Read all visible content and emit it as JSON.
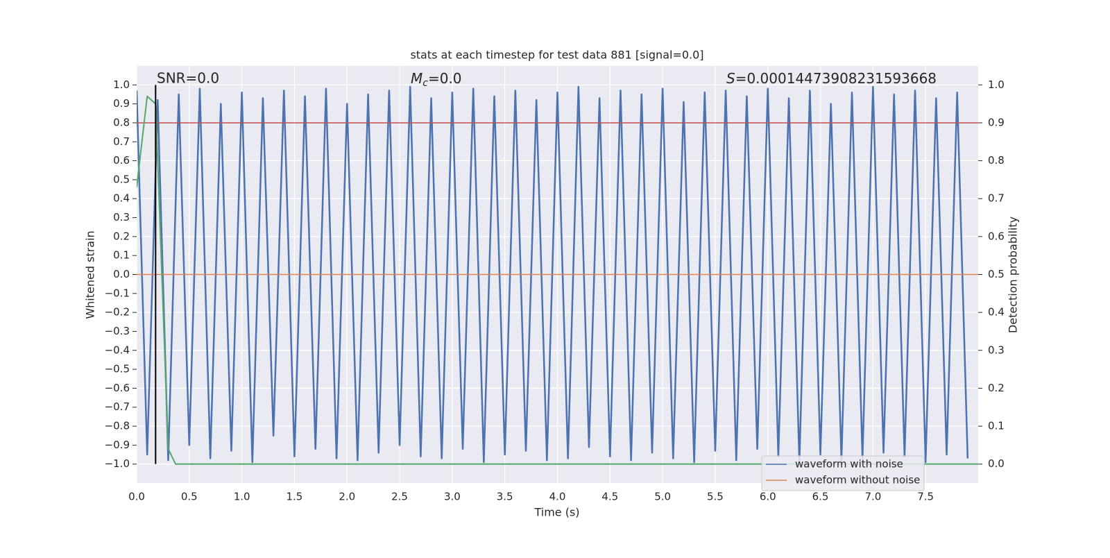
{
  "chart_data": {
    "type": "line",
    "title": "stats at each timestep for test data 881 [signal=0.0]",
    "xlabel": "Time (s)",
    "ylabel": "Whitened strain",
    "y2label": "Detection probability",
    "annotations": [
      {
        "text": "SNR=0.0"
      },
      {
        "symbol": "M",
        "subscript": "c",
        "text": "=0.0"
      },
      {
        "symbol": "S",
        "text": "=0.00014473908231593668"
      }
    ],
    "xlim": [
      0,
      8
    ],
    "ylim": [
      -1.1,
      1.1
    ],
    "y2lim": [
      -0.05,
      1.05
    ],
    "xticks": [
      {
        "value": 0,
        "label": "0.0"
      },
      {
        "value": 0.5,
        "label": "0.5"
      },
      {
        "value": 1,
        "label": "1.0"
      },
      {
        "value": 1.5,
        "label": "1.5"
      },
      {
        "value": 2,
        "label": "2.0"
      },
      {
        "value": 2.5,
        "label": "2.5"
      },
      {
        "value": 3,
        "label": "3.0"
      },
      {
        "value": 3.5,
        "label": "3.5"
      },
      {
        "value": 4,
        "label": "4.0"
      },
      {
        "value": 4.5,
        "label": "4.5"
      },
      {
        "value": 5,
        "label": "5.0"
      },
      {
        "value": 5.5,
        "label": "5.5"
      },
      {
        "value": 6,
        "label": "6.0"
      },
      {
        "value": 6.5,
        "label": "6.5"
      },
      {
        "value": 7,
        "label": "7.0"
      },
      {
        "value": 7.5,
        "label": "7.5"
      }
    ],
    "yticks": [
      {
        "value": -1,
        "label": "−1.0"
      },
      {
        "value": -0.9,
        "label": "−0.9"
      },
      {
        "value": -0.8,
        "label": "−0.8"
      },
      {
        "value": -0.7,
        "label": "−0.7"
      },
      {
        "value": -0.6,
        "label": "−0.6"
      },
      {
        "value": -0.5,
        "label": "−0.5"
      },
      {
        "value": -0.4,
        "label": "−0.4"
      },
      {
        "value": -0.3,
        "label": "−0.3"
      },
      {
        "value": -0.2,
        "label": "−0.2"
      },
      {
        "value": -0.1,
        "label": "−0.1"
      },
      {
        "value": 0,
        "label": "0.0"
      },
      {
        "value": 0.1,
        "label": "0.1"
      },
      {
        "value": 0.2,
        "label": "0.2"
      },
      {
        "value": 0.3,
        "label": "0.3"
      },
      {
        "value": 0.4,
        "label": "0.4"
      },
      {
        "value": 0.5,
        "label": "0.5"
      },
      {
        "value": 0.6,
        "label": "0.6"
      },
      {
        "value": 0.7,
        "label": "0.7"
      },
      {
        "value": 0.8,
        "label": "0.8"
      },
      {
        "value": 0.9,
        "label": "0.9"
      },
      {
        "value": 1,
        "label": "1.0"
      }
    ],
    "y2ticks": [
      {
        "value": 0,
        "label": "0.0"
      },
      {
        "value": 0.1,
        "label": "0.1"
      },
      {
        "value": 0.2,
        "label": "0.2"
      },
      {
        "value": 0.3,
        "label": "0.3"
      },
      {
        "value": 0.4,
        "label": "0.4"
      },
      {
        "value": 0.5,
        "label": "0.5"
      },
      {
        "value": 0.6,
        "label": "0.6"
      },
      {
        "value": 0.7,
        "label": "0.7"
      },
      {
        "value": 0.8,
        "label": "0.8"
      },
      {
        "value": 0.9,
        "label": "0.9"
      },
      {
        "value": 1,
        "label": "1.0"
      }
    ],
    "grid": true,
    "legend": "lower right",
    "series": [
      {
        "name": "waveform with noise",
        "color": "#4c72b0",
        "x": [
          0,
          0.1,
          0.2,
          0.3,
          0.4,
          0.5,
          0.6,
          0.7,
          0.8,
          0.9,
          1,
          1.1,
          1.2,
          1.3,
          1.4,
          1.5,
          1.6,
          1.7,
          1.8,
          1.9,
          2,
          2.1,
          2.2,
          2.3,
          2.4,
          2.5,
          2.6,
          2.7,
          2.8,
          2.9,
          3,
          3.1,
          3.2,
          3.3,
          3.4,
          3.5,
          3.6,
          3.7,
          3.8,
          3.9,
          4,
          4.1,
          4.2,
          4.3,
          4.4,
          4.5,
          4.6,
          4.7,
          4.8,
          4.9,
          5,
          5.1,
          5.2,
          5.3,
          5.4,
          5.5,
          5.6,
          5.7,
          5.8,
          5.9,
          6,
          6.1,
          6.2,
          6.3,
          6.4,
          6.5,
          6.6,
          6.7,
          6.8,
          6.9,
          7,
          7.1,
          7.2,
          7.3,
          7.4,
          7.5,
          7.6,
          7.7,
          7.8,
          7.9
        ],
        "values": [
          0.97,
          -0.95,
          0.92,
          -0.98,
          0.95,
          -0.9,
          0.98,
          -0.97,
          0.9,
          -0.93,
          0.96,
          -0.99,
          0.93,
          -0.85,
          0.97,
          -0.96,
          0.94,
          -0.92,
          0.98,
          -0.97,
          0.9,
          -0.98,
          0.95,
          -0.94,
          0.97,
          -0.9,
          0.99,
          -0.96,
          0.93,
          -0.97,
          0.96,
          -0.92,
          0.98,
          -0.99,
          0.94,
          -0.95,
          0.97,
          -0.93,
          0.92,
          -0.98,
          0.96,
          -0.97,
          0.99,
          -0.91,
          0.93,
          -0.96,
          0.97,
          -0.98,
          0.95,
          -0.94,
          0.98,
          -0.97,
          0.91,
          -0.99,
          0.96,
          -0.93,
          0.97,
          -0.98,
          0.94,
          -0.92,
          0.98,
          -0.96,
          0.93,
          -0.99,
          0.97,
          -0.95,
          0.9,
          -0.98,
          0.96,
          -0.97,
          0.99,
          -0.94,
          0.95,
          -0.96,
          0.97,
          -0.99,
          0.93,
          -0.95,
          0.96,
          -0.97
        ]
      },
      {
        "name": "waveform without noise",
        "color": "#dd8452",
        "x": [
          0,
          8
        ],
        "values": [
          0,
          0
        ]
      }
    ],
    "probability": {
      "color": "#55a868",
      "axis": "y2",
      "x": [
        0,
        0.1,
        0.18,
        0.3,
        0.37,
        8
      ],
      "values": [
        0.73,
        0.97,
        0.95,
        0.04,
        0,
        0
      ]
    },
    "threshold": {
      "color": "#c44e52",
      "axis": "y2",
      "value": 0.9
    },
    "vline": {
      "x": 0.18,
      "ymin": -1,
      "ymax": 1,
      "color": "#000000"
    }
  }
}
